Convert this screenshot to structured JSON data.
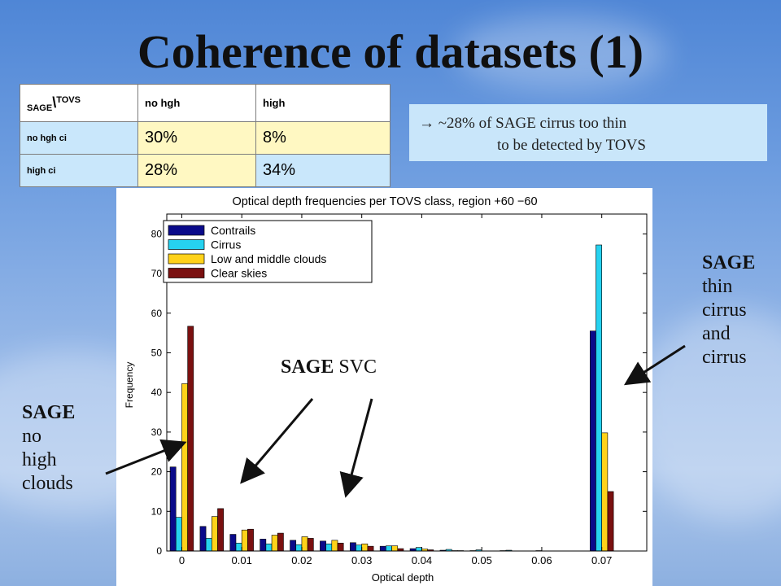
{
  "title": "Coherence of datasets (1)",
  "matrix": {
    "corner": {
      "left": "SAGE",
      "sep": "\\",
      "right": "TOVS"
    },
    "col_headers": [
      "no hgh",
      "high"
    ],
    "rows": [
      {
        "label": "no hgh ci",
        "values": [
          "30%",
          "8%"
        ]
      },
      {
        "label": "high ci",
        "values": [
          "28%",
          "34%"
        ]
      }
    ],
    "colors": {
      "yellow": "#fff8c2",
      "blue": "#c9e7fb"
    }
  },
  "note": {
    "line1": "→ ~28% of SAGE cirrus too thin",
    "line2": "to be detected by TOVS"
  },
  "annotations": {
    "thin": {
      "bold": "SAGE",
      "lines": [
        "thin",
        "cirrus",
        "and",
        "cirrus"
      ]
    },
    "svc": {
      "bold": "SAGE",
      "rest": " SVC"
    },
    "nohigh": {
      "bold": "SAGE",
      "lines": [
        "no",
        "high",
        "clouds"
      ]
    }
  },
  "chart_data": {
    "type": "bar",
    "title": "Optical depth frequencies per TOVS class, region +60 −60",
    "xlabel": "Optical depth",
    "ylabel": "Frequency",
    "ylim": [
      0,
      85
    ],
    "yticks": [
      0,
      10,
      20,
      30,
      40,
      50,
      60,
      70,
      80
    ],
    "categories": [
      "0",
      "0.005",
      "0.01",
      "0.015",
      "0.02",
      "0.025",
      "0.03",
      "0.035",
      "0.04",
      "0.045",
      "0.05",
      "0.055",
      "0.06",
      "0.065",
      "0.07"
    ],
    "xtick_labels": [
      "0",
      "0.01",
      "0.02",
      "0.03",
      "0.04",
      "0.05",
      "0.06",
      "0.07"
    ],
    "legend_position": "top-left",
    "grid": false,
    "series": [
      {
        "name": "Contrails",
        "color": "#0a0a8a",
        "values": [
          21.2,
          6.2,
          4.2,
          3.0,
          2.7,
          2.5,
          2.1,
          1.2,
          0.6,
          0.2,
          0.1,
          0.1,
          0,
          0,
          55.5
        ]
      },
      {
        "name": "Cirrus",
        "color": "#26d2f0",
        "values": [
          8.5,
          3.2,
          2.0,
          1.8,
          1.6,
          1.8,
          1.5,
          1.3,
          0.9,
          0.4,
          0.3,
          0.2,
          0.1,
          0,
          77.2
        ]
      },
      {
        "name": "Low and middle clouds",
        "color": "#ffd21a",
        "values": [
          42.2,
          8.7,
          5.3,
          4.0,
          3.6,
          2.7,
          1.8,
          1.3,
          0.5,
          0.1,
          0,
          0,
          0,
          0,
          29.8
        ]
      },
      {
        "name": "Clear skies",
        "color": "#7a1010",
        "values": [
          56.7,
          10.7,
          5.5,
          4.5,
          3.2,
          2.0,
          1.2,
          0.6,
          0.3,
          0.1,
          0,
          0,
          0,
          0,
          15.0
        ]
      }
    ]
  }
}
